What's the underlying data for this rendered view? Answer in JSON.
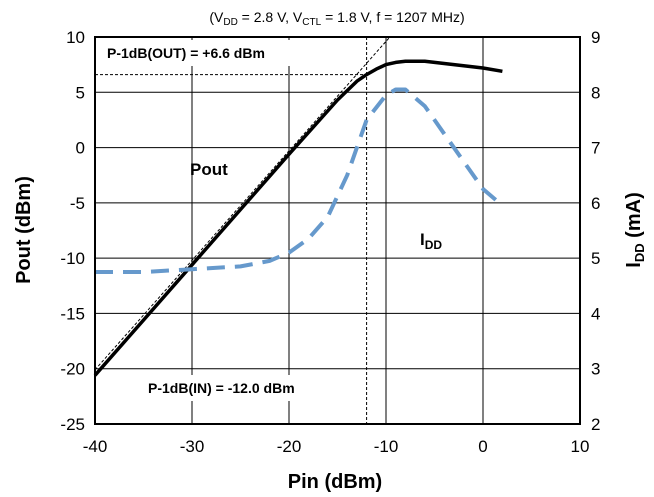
{
  "chart_data": {
    "type": "line",
    "conditions": {
      "open": "(V",
      "vdd_sub": "DD",
      "vdd_val": " = 2.8 V, V",
      "vctl_sub": "CTL",
      "vctl_val": " = 1.8 V, f = 1207 MHz)"
    },
    "xlabel": "Pin (dBm)",
    "ylabel_left": "Pout (dBm)",
    "ylabel_right": {
      "main": "I",
      "sub": "DD",
      "suffix": " (mA)"
    },
    "xlim": [
      -40,
      10
    ],
    "ylim_left": [
      -25,
      10
    ],
    "ylim_right": [
      2,
      9
    ],
    "x_ticks": [
      "-40",
      "-30",
      "-20",
      "-10",
      "0",
      "10"
    ],
    "y_left_ticks": [
      "10",
      "5",
      "0",
      "-5",
      "-10",
      "-15",
      "-20",
      "-25"
    ],
    "y_right_ticks": [
      "9",
      "8",
      "7",
      "6",
      "5",
      "4",
      "3",
      "2"
    ],
    "grid": true,
    "series": [
      {
        "name": "Pout",
        "axis": "left",
        "style": "solid",
        "color": "#000000",
        "x": [
          -40,
          -35,
          -30,
          -25,
          -20,
          -15,
          -13,
          -12,
          -11,
          -10,
          -9,
          -8,
          -6,
          -4,
          -2,
          0,
          2
        ],
        "y": [
          -20.6,
          -15.6,
          -10.6,
          -5.6,
          -0.6,
          4.3,
          6.0,
          6.6,
          7.1,
          7.5,
          7.7,
          7.8,
          7.8,
          7.6,
          7.4,
          7.2,
          6.9
        ]
      },
      {
        "name": "I",
        "name_sub": "DD",
        "axis": "right",
        "style": "dashed",
        "color": "#6699cc",
        "x": [
          -40,
          -35,
          -30,
          -25,
          -22,
          -20,
          -18,
          -16,
          -14,
          -12,
          -10,
          -9,
          -8,
          -6,
          -4,
          -2,
          0,
          2
        ],
        "y": [
          4.75,
          4.75,
          4.8,
          4.85,
          4.95,
          5.1,
          5.35,
          5.75,
          6.5,
          7.5,
          7.95,
          8.05,
          8.05,
          7.75,
          7.25,
          6.75,
          6.25,
          5.95
        ]
      }
    ],
    "annotations": {
      "p1db_out": "P-1dB(OUT) = +6.6 dBm",
      "p1db_in": "P-1dB(IN) = -12.0 dBm",
      "pout_label": "Pout",
      "idd_label_main": "I",
      "idd_label_sub": "DD"
    },
    "reference_lines": {
      "ideal_slope_start": [
        -40,
        -20.1
      ],
      "ideal_slope_end": [
        -9.6,
        10
      ],
      "p1db_in_x": -12.0,
      "p1db_out_y": 6.6
    }
  }
}
